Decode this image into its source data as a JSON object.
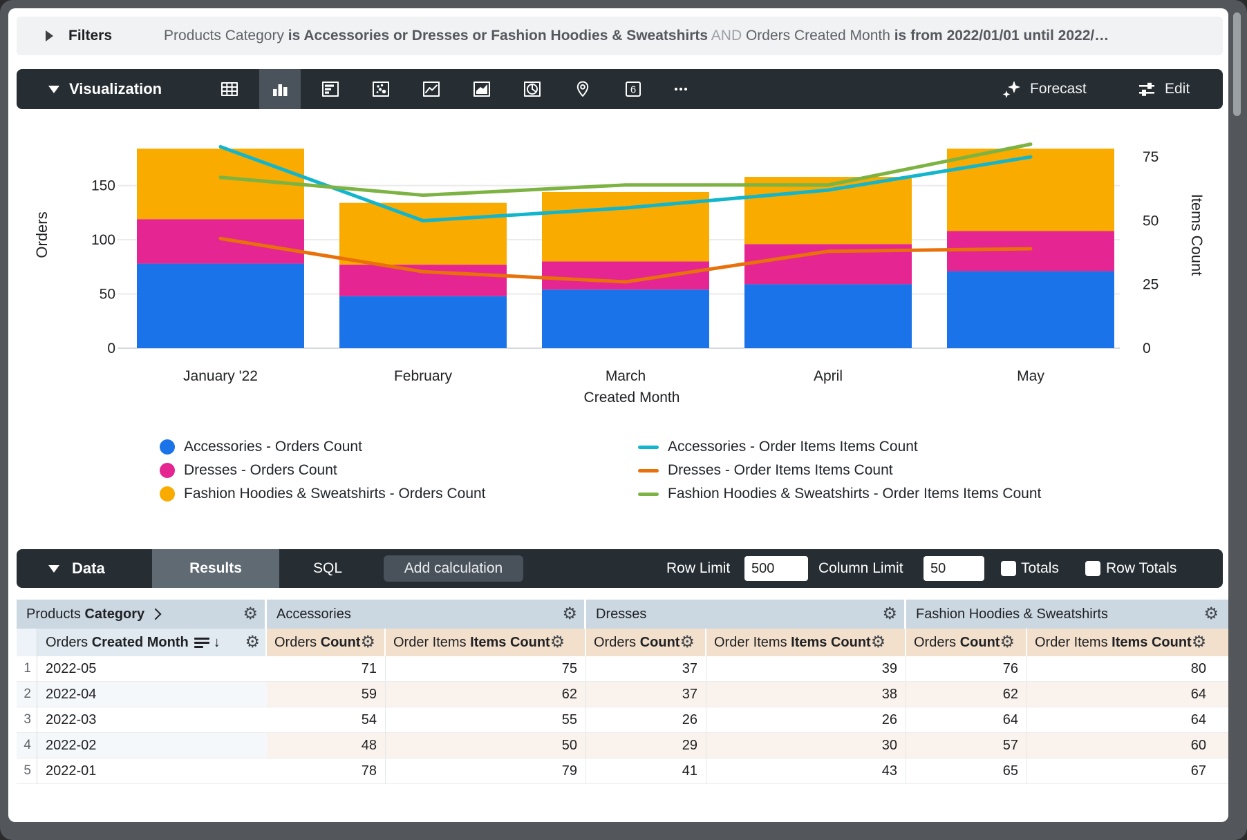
{
  "filters": {
    "label": "Filters",
    "part1": "Products Category ",
    "part2": "is Accessories or Dresses or Fashion Hoodies & Sweatshirts",
    "part3": "AND",
    "part4": " Orders Created Month ",
    "part5": "is from 2022/01/01 until 2022/…"
  },
  "viz": {
    "section_label": "Visualization",
    "icons": [
      "table",
      "column",
      "bar",
      "scatter",
      "line",
      "area",
      "pie",
      "map",
      "single-value",
      "more"
    ],
    "selected_icon": "column",
    "single_value_glyph": "6",
    "forecast_label": "Forecast",
    "edit_label": "Edit"
  },
  "chart_data": {
    "type": "bar",
    "subtype": "stacked-column-with-lines",
    "categories": [
      "January '22",
      "February",
      "March",
      "April",
      "May"
    ],
    "stacked": true,
    "grid": true,
    "legend_position": "bottom",
    "bar_series": [
      {
        "name": "Accessories - Orders Count",
        "color": "#1a73e8",
        "values": [
          78,
          48,
          54,
          59,
          71
        ]
      },
      {
        "name": "Dresses - Orders Count",
        "color": "#e52592",
        "values": [
          41,
          29,
          26,
          37,
          37
        ]
      },
      {
        "name": "Fashion Hoodies & Sweatshirts - Orders Count",
        "color": "#f9ab00",
        "values": [
          65,
          57,
          64,
          62,
          76
        ]
      }
    ],
    "line_series": [
      {
        "name": "Accessories - Order Items Items Count",
        "color": "#12b5cb",
        "values": [
          79,
          50,
          55,
          62,
          75
        ]
      },
      {
        "name": "Dresses - Order Items Items Count",
        "color": "#e8710a",
        "values": [
          43,
          30,
          26,
          38,
          39
        ]
      },
      {
        "name": "Fashion Hoodies & Sweatshirts - Order Items Items Count",
        "color": "#7cb342",
        "values": [
          67,
          60,
          64,
          64,
          80
        ]
      }
    ],
    "left_axis": {
      "title": "Orders",
      "ticks": [
        0,
        50,
        100,
        150
      ],
      "max_units": 212.8
    },
    "right_axis": {
      "title": "Items Count",
      "ticks": [
        0,
        25,
        50,
        75
      ],
      "max_units": 90.5
    },
    "x_axis": {
      "title": "Created Month"
    }
  },
  "data_bar": {
    "section_label": "Data",
    "tab_results": "Results",
    "tab_sql": "SQL",
    "active_tab": "Results",
    "add_calculation_label": "Add calculation",
    "row_limit_label": "Row Limit",
    "row_limit_value": "500",
    "column_limit_label": "Column Limit",
    "column_limit_value": "50",
    "totals_label": "Totals",
    "row_totals_label": "Row Totals",
    "totals_checked": false,
    "row_totals_checked": false
  },
  "table": {
    "group_dim_normal": "Products ",
    "group_dim_bold": "Category",
    "group_accessories": "Accessories",
    "group_dresses": "Dresses",
    "group_fashion": "Fashion Hoodies & Sweatshirts",
    "dim_head_normal": "Orders ",
    "dim_head_bold": "Created Month",
    "count_head_normal": "Orders ",
    "count_head_bold": "Count",
    "items_head_normal": "Order Items ",
    "items_head_bold": "Items Count",
    "rows": [
      {
        "n": "1",
        "month": "2022-05",
        "values": [
          "71",
          "75",
          "37",
          "39",
          "76",
          "80"
        ]
      },
      {
        "n": "2",
        "month": "2022-04",
        "values": [
          "59",
          "62",
          "37",
          "38",
          "62",
          "64"
        ]
      },
      {
        "n": "3",
        "month": "2022-03",
        "values": [
          "54",
          "55",
          "26",
          "26",
          "64",
          "64"
        ]
      },
      {
        "n": "4",
        "month": "2022-02",
        "values": [
          "48",
          "50",
          "29",
          "30",
          "57",
          "60"
        ]
      },
      {
        "n": "5",
        "month": "2022-01",
        "values": [
          "78",
          "79",
          "41",
          "43",
          "65",
          "67"
        ]
      }
    ]
  }
}
